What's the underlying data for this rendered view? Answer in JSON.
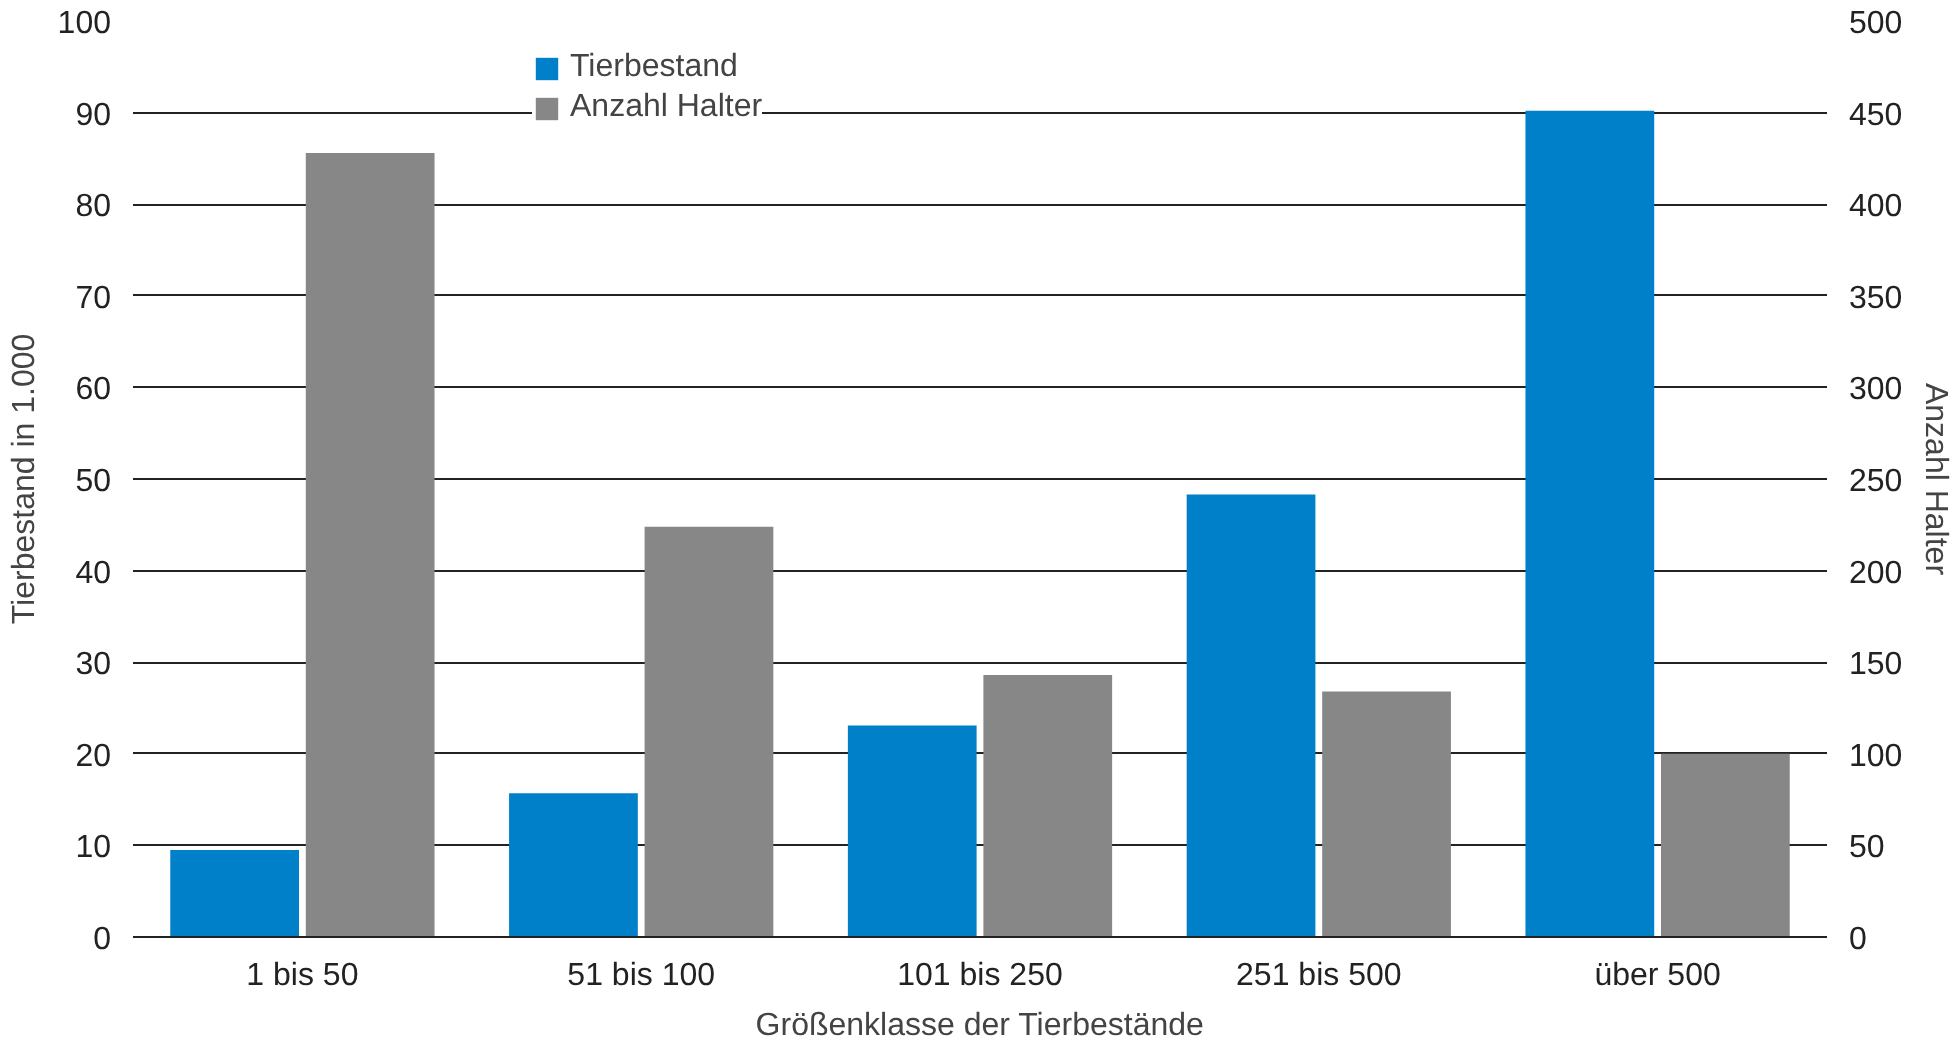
{
  "chart_data": {
    "type": "bar",
    "xlabel": "Größenklasse der Tierbestände",
    "ylabel": "Tierbestand in 1.000",
    "y2label": "Anzahl Halter",
    "categories": [
      "1 bis 50",
      "51 bis 100",
      "101 bis 250",
      "251 bis 500",
      "über 500"
    ],
    "series": [
      {
        "name": "Tierbestand",
        "color": "#0080c8",
        "values": [
          9.5,
          15.7,
          23.1,
          48.3,
          90.2
        ]
      },
      {
        "name": "Anzahl Halter",
        "color": "#878787",
        "values": [
          428,
          224,
          143,
          134,
          100
        ],
        "axis": "y2"
      }
    ],
    "ylim": [
      0,
      100
    ],
    "yticks": [
      0,
      10,
      20,
      30,
      40,
      50,
      60,
      70,
      80,
      90,
      100
    ],
    "y2lim": [
      0,
      500
    ],
    "y2ticks": [
      0,
      50,
      100,
      150,
      200,
      250,
      300,
      350,
      400,
      450,
      500
    ],
    "grid": "y",
    "legend": "top"
  }
}
